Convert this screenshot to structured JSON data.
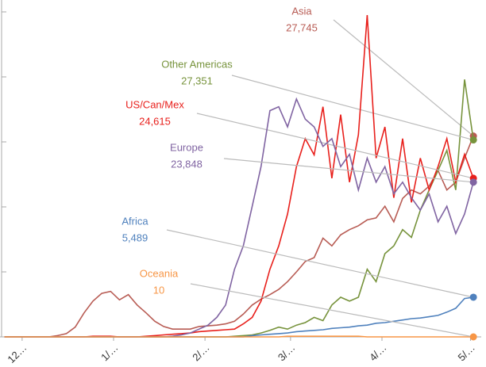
{
  "chart_data": {
    "type": "line",
    "x": [
      -6,
      -3,
      0,
      3,
      6,
      9,
      12,
      15,
      18,
      21,
      24,
      27,
      30,
      33,
      36,
      39,
      42,
      45,
      48,
      51,
      54,
      57,
      60,
      63,
      66,
      69,
      72,
      75,
      78,
      81,
      84,
      87,
      90,
      93,
      96,
      99,
      102,
      105,
      108,
      111,
      114,
      117,
      120,
      123,
      126,
      129,
      132,
      135,
      138,
      141,
      144,
      147,
      150,
      153
    ],
    "xlim": [
      -7.5,
      153.5
    ],
    "xticks": [
      {
        "value": 0,
        "label": "12…"
      },
      {
        "value": 31,
        "label": "1/…"
      },
      {
        "value": 62,
        "label": "2/…"
      },
      {
        "value": 91,
        "label": "3/…"
      },
      {
        "value": 122,
        "label": "4/…"
      },
      {
        "value": 152,
        "label": "5/…"
      }
    ],
    "ylim": [
      0,
      50000
    ],
    "yticks": [
      0,
      10000,
      20000,
      30000,
      40000,
      50000
    ],
    "series": [
      {
        "name": "Asia",
        "annotation": "27,745",
        "color": "#b85c54",
        "values": [
          0,
          0,
          0,
          0,
          0,
          0,
          200,
          500,
          1500,
          3700,
          5500,
          6700,
          7000,
          5700,
          6500,
          4900,
          3700,
          2400,
          1600,
          1200,
          1200,
          1200,
          1600,
          1700,
          1800,
          2000,
          2400,
          3500,
          4900,
          5800,
          6500,
          7300,
          8500,
          10000,
          11600,
          12200,
          15200,
          14000,
          15700,
          16500,
          17100,
          18000,
          18300,
          20100,
          17700,
          21300,
          22600,
          22000,
          23200,
          25600,
          22600,
          23800,
          27500,
          30900
        ]
      },
      {
        "name": "Other Americas",
        "annotation": "27,351",
        "color": "#77933c",
        "values": [
          0,
          0,
          0,
          0,
          0,
          0,
          0,
          0,
          0,
          0,
          0,
          0,
          0,
          0,
          0,
          0,
          0,
          0,
          0,
          0,
          0,
          0,
          0,
          0,
          0,
          0,
          100,
          200,
          300,
          600,
          1000,
          1500,
          1200,
          1800,
          2200,
          3000,
          2500,
          4900,
          6100,
          5500,
          6100,
          10400,
          8500,
          12800,
          14000,
          16500,
          15300,
          19500,
          22600,
          25600,
          28700,
          22600,
          39600,
          30300
        ]
      },
      {
        "name": "US/Can/Mex",
        "annotation": "24,615",
        "color": "#e8201c",
        "values": [
          0,
          0,
          0,
          0,
          0,
          0,
          0,
          0,
          0,
          0,
          100,
          100,
          100,
          0,
          0,
          0,
          100,
          200,
          300,
          400,
          500,
          600,
          800,
          900,
          1000,
          1100,
          1200,
          2000,
          3000,
          5500,
          10400,
          14000,
          18900,
          26200,
          30500,
          28000,
          35400,
          24400,
          34200,
          23800,
          31100,
          49500,
          27500,
          32300,
          21400,
          30500,
          20700,
          27500,
          22600,
          26200,
          30500,
          23800,
          28100,
          24400
        ]
      },
      {
        "name": "Europe",
        "annotation": "23,848",
        "color": "#8064a2",
        "values": [
          0,
          0,
          0,
          0,
          0,
          0,
          0,
          0,
          0,
          0,
          0,
          0,
          0,
          0,
          0,
          0,
          0,
          0,
          0,
          100,
          300,
          600,
          1200,
          1800,
          3000,
          4900,
          10400,
          14000,
          20100,
          26200,
          34800,
          35400,
          32300,
          36600,
          33500,
          32300,
          29300,
          30500,
          26200,
          28100,
          22600,
          27500,
          23800,
          26200,
          22000,
          23800,
          21400,
          19500,
          22000,
          17700,
          20100,
          15900,
          18900,
          23800
        ]
      },
      {
        "name": "Africa",
        "annotation": "5,489",
        "color": "#4f81bd",
        "values": [
          0,
          0,
          0,
          0,
          0,
          0,
          0,
          0,
          0,
          0,
          0,
          0,
          0,
          0,
          0,
          0,
          0,
          0,
          0,
          0,
          0,
          0,
          0,
          0,
          0,
          0,
          0,
          0,
          200,
          300,
          400,
          500,
          600,
          800,
          900,
          1000,
          1100,
          1300,
          1400,
          1500,
          1700,
          1800,
          2100,
          2200,
          2400,
          2600,
          2800,
          2900,
          3100,
          3300,
          3800,
          4400,
          5900,
          6100
        ]
      },
      {
        "name": "Oceania",
        "annotation": "10",
        "color": "#f79646",
        "values": [
          0,
          0,
          0,
          0,
          0,
          0,
          0,
          0,
          0,
          0,
          0,
          0,
          0,
          0,
          0,
          0,
          0,
          0,
          0,
          0,
          0,
          0,
          0,
          0,
          0,
          0,
          0,
          0,
          0,
          0,
          0,
          0,
          100,
          100,
          100,
          100,
          100,
          100,
          100,
          100,
          100,
          0,
          0,
          0,
          0,
          0,
          0,
          0,
          0,
          0,
          0,
          0,
          0,
          0
        ]
      }
    ]
  }
}
